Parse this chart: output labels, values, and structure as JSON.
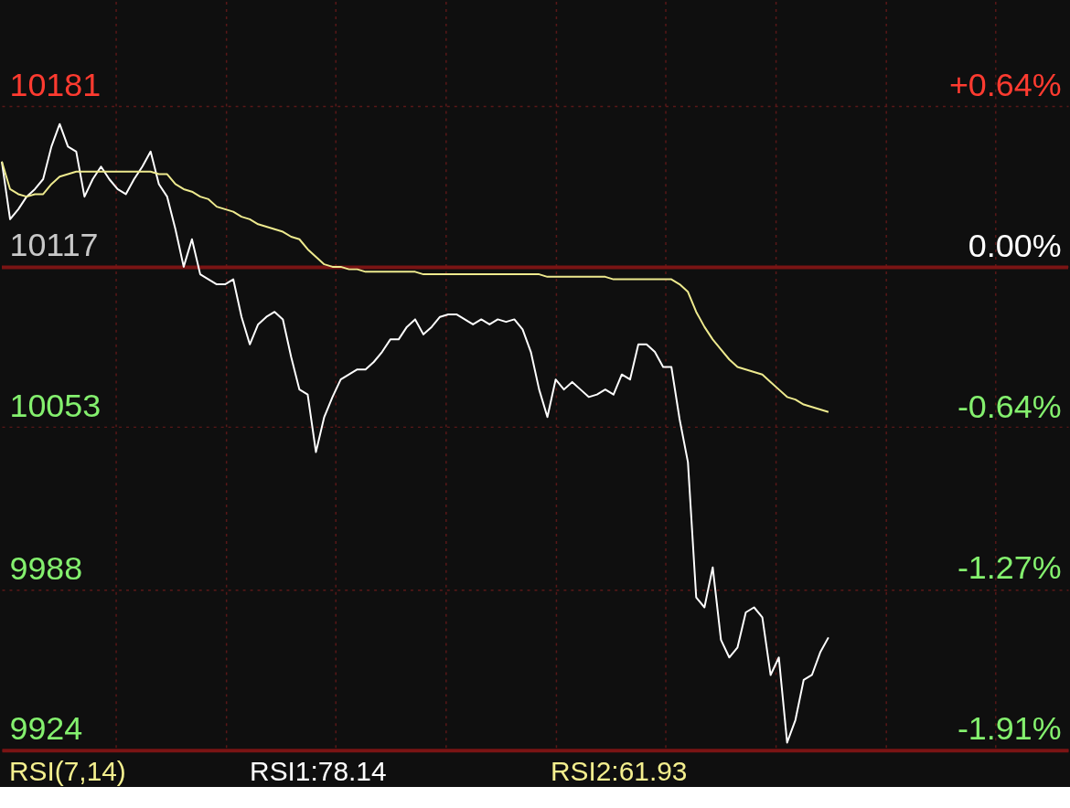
{
  "chart_data": {
    "type": "line",
    "categories": [
      null,
      null,
      null,
      null,
      null,
      null,
      null,
      null,
      null,
      null,
      null,
      null,
      null,
      null,
      null,
      null,
      null,
      null,
      null,
      null,
      null,
      null,
      null,
      null,
      null,
      null,
      null,
      null,
      null,
      null,
      null,
      null,
      null,
      null,
      null,
      null,
      null,
      null,
      null,
      null,
      null,
      null,
      null,
      null,
      null,
      null,
      null,
      null,
      null,
      null,
      null,
      null,
      null,
      null,
      null,
      null,
      null,
      null,
      null,
      null,
      null,
      null,
      null,
      null,
      null,
      null,
      null,
      null,
      null,
      null,
      null,
      null,
      null,
      null,
      null,
      null,
      null,
      null,
      null,
      null,
      null,
      null,
      null,
      null,
      null,
      null,
      null,
      null,
      null,
      null,
      null,
      null,
      null,
      null,
      null,
      null,
      null,
      null,
      null,
      null,
      null,
      null,
      null,
      null,
      null,
      null,
      null,
      null,
      null,
      null,
      null,
      null,
      null,
      null,
      null,
      null,
      null,
      null,
      null,
      null,
      null,
      null,
      null,
      null,
      null,
      null,
      null,
      null,
      null,
      null
    ],
    "series": [
      {
        "color": "#ffffff",
        "values": [
          10159,
          10136,
          10140,
          10145,
          10148,
          10152,
          10165,
          10174,
          10165,
          10163,
          10145,
          10152,
          10157,
          10152,
          10148,
          10146,
          10152,
          10157,
          10163,
          10150,
          10145,
          10132,
          10117,
          10128,
          10114,
          10112,
          10110,
          10110,
          10112,
          10097,
          10086,
          10094,
          10097,
          10099,
          10096,
          10081,
          10068,
          10066,
          10043,
          10057,
          10065,
          10072,
          10074,
          10076,
          10076,
          10079,
          10083,
          10088,
          10088,
          10093,
          10096,
          10090,
          10093,
          10097,
          10098,
          10098,
          10096,
          10094,
          10096,
          10094,
          10096,
          10095,
          10096,
          10092,
          10083,
          10068,
          10057,
          10072,
          10068,
          10071,
          10068,
          10065,
          10066,
          10068,
          10066,
          10074,
          10072,
          10086,
          10086,
          10083,
          10077,
          10077,
          10056,
          10039,
          9985,
          9981,
          9997,
          9968,
          9961,
          9965,
          9979,
          9981,
          9977,
          9954,
          9961,
          9927,
          9936,
          9952,
          9954,
          9963,
          9969,
          null,
          null,
          null,
          null,
          null,
          null,
          null,
          null,
          null,
          null,
          null,
          null,
          null,
          null,
          null,
          null,
          null,
          null,
          null,
          null,
          null,
          null,
          null,
          null,
          null,
          null,
          null,
          null,
          null
        ]
      },
      {
        "color": "#eeea8e",
        "values": [
          10159,
          10148,
          10146,
          10145,
          10146,
          10146,
          10150,
          10153,
          10154,
          10155,
          10155,
          10155,
          10155,
          10155,
          10155,
          10155,
          10155,
          10155,
          10155,
          10154,
          10154,
          10150,
          10148,
          10147,
          10145,
          10144,
          10141,
          10140,
          10139,
          10137,
          10136,
          10134,
          10133,
          10132,
          10131,
          10129,
          10128,
          10124,
          10121,
          10118,
          10117,
          10117,
          10116,
          10116,
          10115,
          10115,
          10115,
          10115,
          10115,
          10115,
          10115,
          10114,
          10114,
          10114,
          10114,
          10114,
          10114,
          10114,
          10114,
          10114,
          10114,
          10114,
          10114,
          10114,
          10114,
          10114,
          10113,
          10113,
          10113,
          10113,
          10113,
          10113,
          10113,
          10113,
          10112,
          10112,
          10112,
          10112,
          10112,
          10112,
          10112,
          10112,
          10110,
          10107,
          10099,
          10093,
          10088,
          10084,
          10080,
          10077,
          10076,
          10075,
          10074,
          10071,
          10068,
          10065,
          10064,
          10062,
          10061,
          10060,
          10059,
          null,
          null,
          null,
          null,
          null,
          null,
          null,
          null,
          null,
          null,
          null,
          null,
          null,
          null,
          null,
          null,
          null,
          null,
          null,
          null,
          null,
          null,
          null,
          null,
          null,
          null,
          null,
          null,
          null
        ]
      }
    ],
    "ylim": [
      9924,
      10223
    ],
    "yticks": [
      10181,
      10117,
      10053,
      9988,
      9924
    ],
    "y2lim": [
      -1.909,
      1.052
    ],
    "y2ticks": [
      {
        "value": 0.636,
        "label": "+0.64%"
      },
      {
        "value": 0,
        "label": "0.00%"
      },
      {
        "value": -0.636,
        "label": "-0.64%"
      },
      {
        "value": -1.273,
        "label": "-1.27%"
      },
      {
        "value": -1.909,
        "label": "-1.91%"
      }
    ],
    "ref_lines": [
      {
        "axis": "y2",
        "value": 0,
        "color": "#7a1414"
      }
    ],
    "grid": true,
    "legend": false,
    "line_style": "solid",
    "marker": "none",
    "annotations": [
      "RSI(7,14)",
      "RSI1:78.14",
      "RSI2:61.93"
    ]
  }
}
